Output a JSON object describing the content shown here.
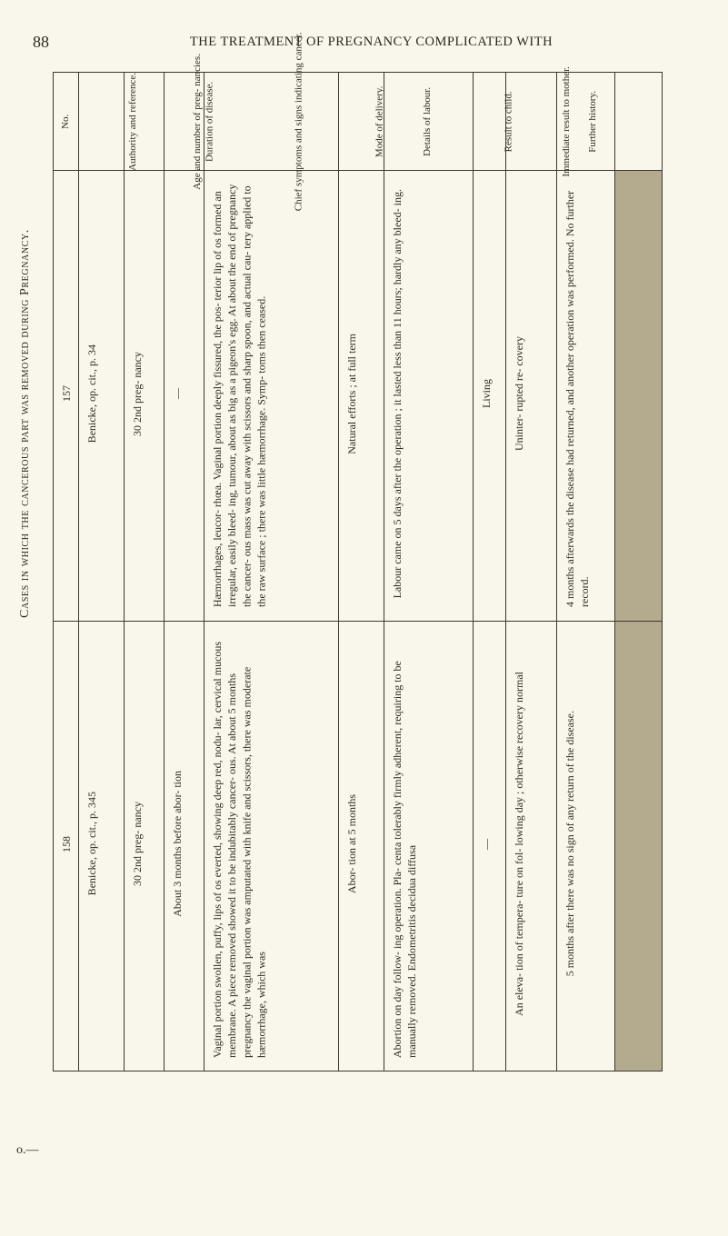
{
  "page_number": "88",
  "running_head": "THE TREATMENT OF PREGNANCY COMPLICATED WITH",
  "side_caption_prefix": "o.—",
  "side_caption": "Cases in which the cancerous part was removed during Pregnancy.",
  "columns": {
    "no": "No.",
    "authority": "Authority and reference.",
    "age": "Age and number of preg- nancies.",
    "duration": "Duration of disease.",
    "symptoms": "Chief symptoms and signs indicating cancer.",
    "mode": "Mode of delivery.",
    "labour": "Details of labour.",
    "result": "Result to child.",
    "immediate": "Immediate result to mother.",
    "further": "Further history.",
    "smudge": ""
  },
  "rows": [
    {
      "no": "157",
      "authority": "Benicke, op. cit., p. 34",
      "age": "30 2nd preg- nancy",
      "duration": "—",
      "symptoms": "Hæmorrhages, leucor- rhœa. Vaginal portion deeply fissured, the pos- terior lip of os formed an irregular, easily bleed- ing, tumour, about as big as a pigeon's egg. At about the end of pregnancy the cancer- ous mass was cut away with scissors and sharp spoon, and actual cau- tery applied to the raw surface ; there was little hæmorrhage. Symp- toms then ceased.",
      "mode": "Natural efforts ; at full term",
      "labour": "Labour came on 5 days after the operation ; it lasted less than 11 hours; hardly any bleed- ing.",
      "result": "Living",
      "immediate": "Uninter- rupted re- covery",
      "further": "4 months afterwards the disease had returned, and another operation was performed. No further record.",
      "smudge": ""
    },
    {
      "no": "158",
      "authority": "Benicke, op. cit., p. 345",
      "age": "30 2nd preg- nancy",
      "duration": "About 3 months before abor- tion",
      "symptoms": "Vaginal portion swollen, puffy, lips of os everted, showing deep red, nodu- lar, cervical mucous membrane. A piece removed showed it to be indubitably cancer- ous. At about 5 months pregnancy the vaginal portion was amputated with knife and scissors, there was moderate hæmorrhage, which was",
      "mode": "Abor- tion at 5 months",
      "labour": "Abortion on day follow- ing operation. Pla- centa tolerably firmly adherent, requiring to be manually removed. Endometritis decidua diffusa",
      "result": "—",
      "immediate": "An eleva- tion of tempera- ture on fol- lowing day ; otherwise recovery normal",
      "further": "5 months after there was no sign of any return of the disease.",
      "smudge": ""
    }
  ]
}
